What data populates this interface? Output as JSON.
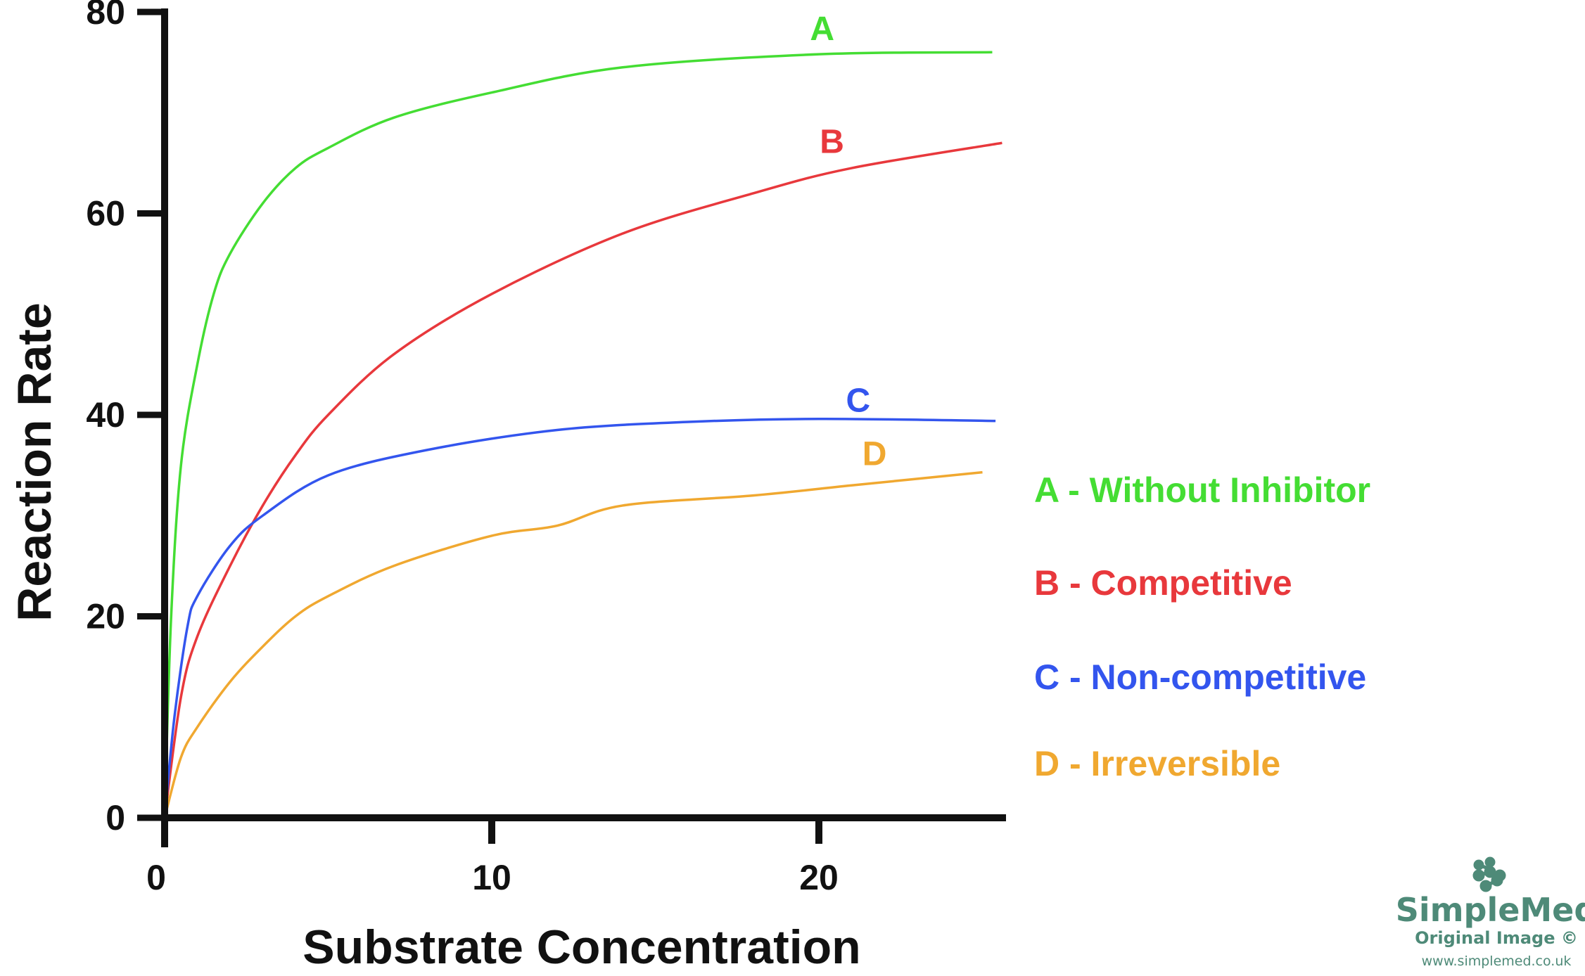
{
  "chart_data": {
    "type": "line",
    "xlabel": "Substrate Concentration",
    "ylabel": "Reaction Rate",
    "xlim": [
      0,
      25.8
    ],
    "ylim": [
      0,
      80
    ],
    "xticks": [
      "0",
      "10",
      "20"
    ],
    "yticks": [
      "0",
      "20",
      "40",
      "60",
      "80"
    ],
    "grid": false,
    "legend_position": "right",
    "series": [
      {
        "name": "A",
        "legend": "A - Without Inhibitor",
        "color": "#44dd33",
        "label_at": [
          20.1,
          78.4
        ],
        "points": [
          [
            0,
            0
          ],
          [
            0.2,
            20
          ],
          [
            0.5,
            35
          ],
          [
            1,
            45
          ],
          [
            1.5,
            52
          ],
          [
            2,
            56
          ],
          [
            3,
            61
          ],
          [
            4,
            64.5
          ],
          [
            5,
            66.5
          ],
          [
            7,
            69.5
          ],
          [
            10,
            72
          ],
          [
            14,
            74.5
          ],
          [
            20,
            75.8
          ],
          [
            25.3,
            76
          ]
        ]
      },
      {
        "name": "B",
        "legend": "B - Competitive",
        "color": "#e8383c",
        "label_at": [
          20.4,
          67.2
        ],
        "points": [
          [
            0,
            0
          ],
          [
            0.5,
            12
          ],
          [
            1,
            18
          ],
          [
            2,
            25
          ],
          [
            3,
            31
          ],
          [
            4,
            36
          ],
          [
            5,
            40
          ],
          [
            7,
            46
          ],
          [
            10,
            52
          ],
          [
            14,
            58
          ],
          [
            18,
            62
          ],
          [
            21,
            64.5
          ],
          [
            25.6,
            67
          ]
        ]
      },
      {
        "name": "C",
        "legend": "C - Non-competitive",
        "color": "#3355ee",
        "label_at": [
          21.2,
          41.5
        ],
        "points": [
          [
            0,
            0
          ],
          [
            0.3,
            10
          ],
          [
            0.7,
            19
          ],
          [
            1,
            22
          ],
          [
            2,
            27
          ],
          [
            3,
            30
          ],
          [
            5,
            34
          ],
          [
            8,
            36.5
          ],
          [
            12,
            38.5
          ],
          [
            16,
            39.3
          ],
          [
            20,
            39.6
          ],
          [
            25.4,
            39.4
          ]
        ]
      },
      {
        "name": "D",
        "legend": "D - Irreversible",
        "color": "#f0a830",
        "label_at": [
          21.7,
          36.2
        ],
        "points": [
          [
            0,
            0
          ],
          [
            0.5,
            6
          ],
          [
            1,
            9
          ],
          [
            2,
            13.5
          ],
          [
            3,
            17
          ],
          [
            4,
            20
          ],
          [
            5,
            22
          ],
          [
            7,
            25
          ],
          [
            10,
            28
          ],
          [
            12,
            29
          ],
          [
            14,
            31
          ],
          [
            18,
            32
          ],
          [
            21,
            33
          ],
          [
            25,
            34.3
          ]
        ]
      }
    ]
  },
  "watermark": {
    "brand": "SimpleMed",
    "line2": "Original Image ©",
    "url": "www.simplemed.co.uk",
    "color": "#4e8a78"
  }
}
